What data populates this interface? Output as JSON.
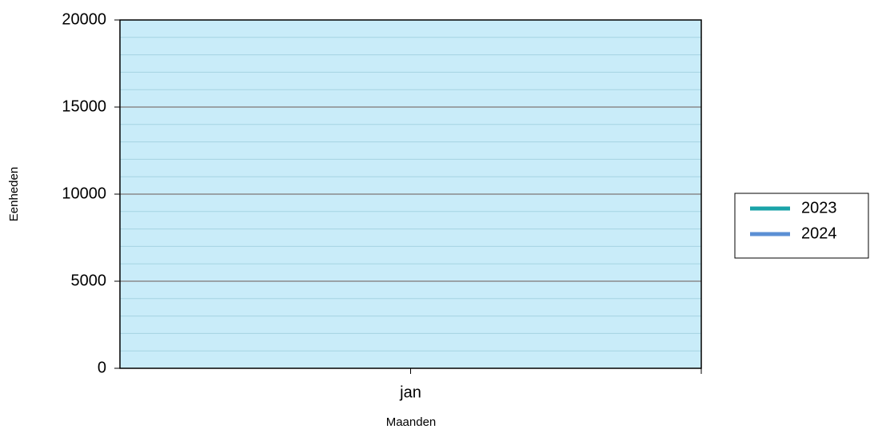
{
  "chart_data": {
    "type": "line",
    "x_label": "Maanden",
    "y_label": "Eenheden",
    "categories": [
      "jan"
    ],
    "series": [
      {
        "name": "2023",
        "color": "#1aa3a8",
        "values": [
          null
        ]
      },
      {
        "name": "2024",
        "color": "#5b8fd4",
        "values": [
          null
        ]
      }
    ],
    "ylim": [
      0,
      20000
    ],
    "yticks": [
      0,
      5000,
      10000,
      15000,
      20000
    ],
    "grid": true,
    "minor_grid_divisions": 5,
    "plot_background": "#c9ecf9",
    "legend": "right"
  }
}
